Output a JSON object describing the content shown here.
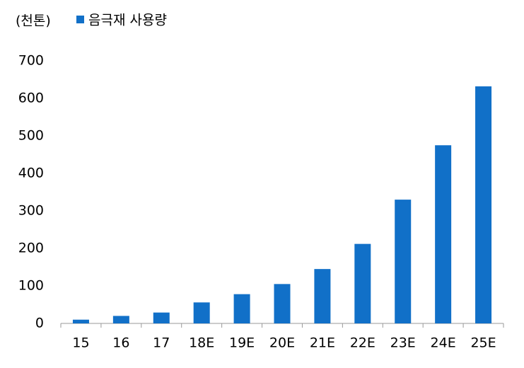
{
  "chart_data": {
    "type": "bar",
    "y_label": "(천톤)",
    "series": [
      {
        "name": "음극재 사용량",
        "color": "#1170c8",
        "values": [
          10,
          20,
          29,
          56,
          78,
          105,
          145,
          212,
          330,
          475,
          632
        ]
      }
    ],
    "categories": [
      "15",
      "16",
      "17",
      "18E",
      "19E",
      "20E",
      "21E",
      "22E",
      "23E",
      "24E",
      "25E"
    ],
    "ylim": [
      0,
      700
    ],
    "yticks": [
      0,
      100,
      200,
      300,
      400,
      500,
      600,
      700
    ],
    "grid": false
  }
}
